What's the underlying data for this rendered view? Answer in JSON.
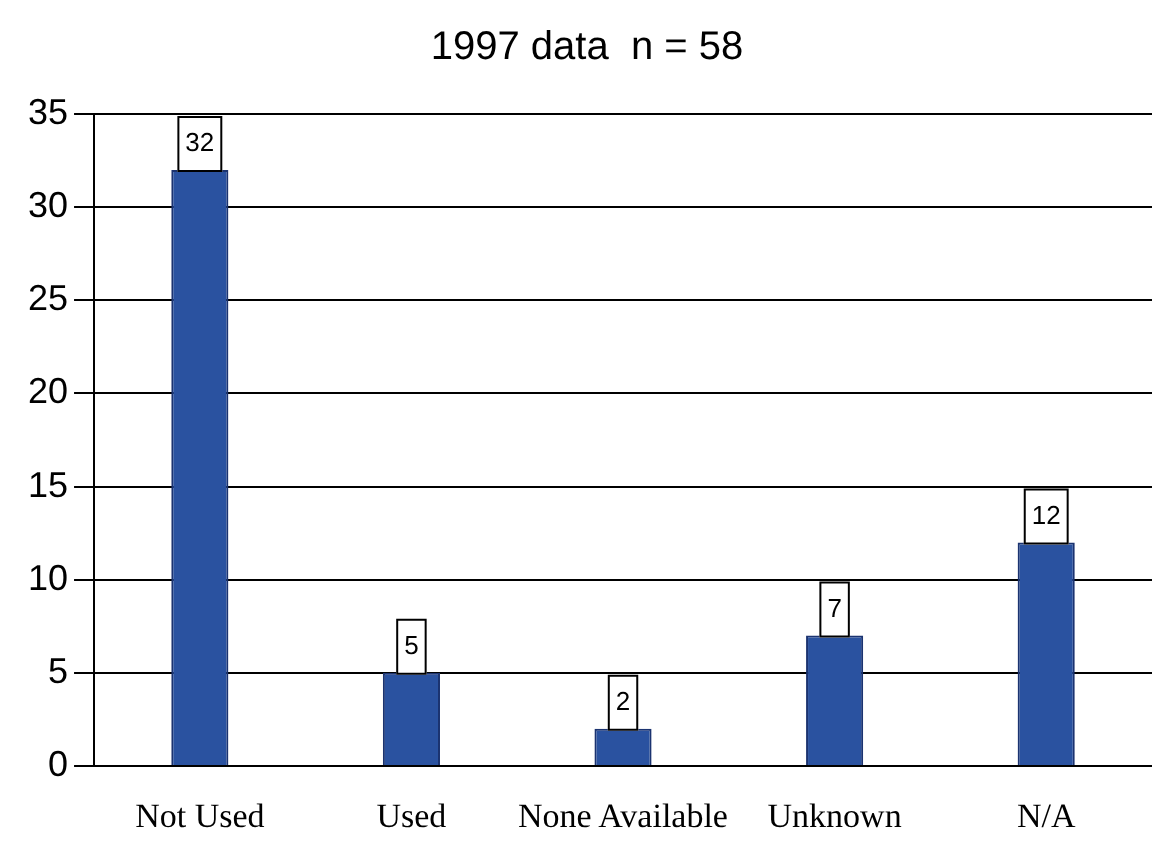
{
  "chart_data": {
    "type": "bar",
    "title": "1997 data  n = 58",
    "categories": [
      "Not Used",
      "Used",
      "None Available",
      "Unknown",
      "N/A"
    ],
    "values": [
      32,
      5,
      2,
      7,
      12
    ],
    "color": "#2a52a0",
    "ylim": [
      0,
      35
    ],
    "yticks": [
      0,
      5,
      10,
      15,
      20,
      25,
      30,
      35
    ],
    "grid": "y",
    "data_labels": true
  }
}
